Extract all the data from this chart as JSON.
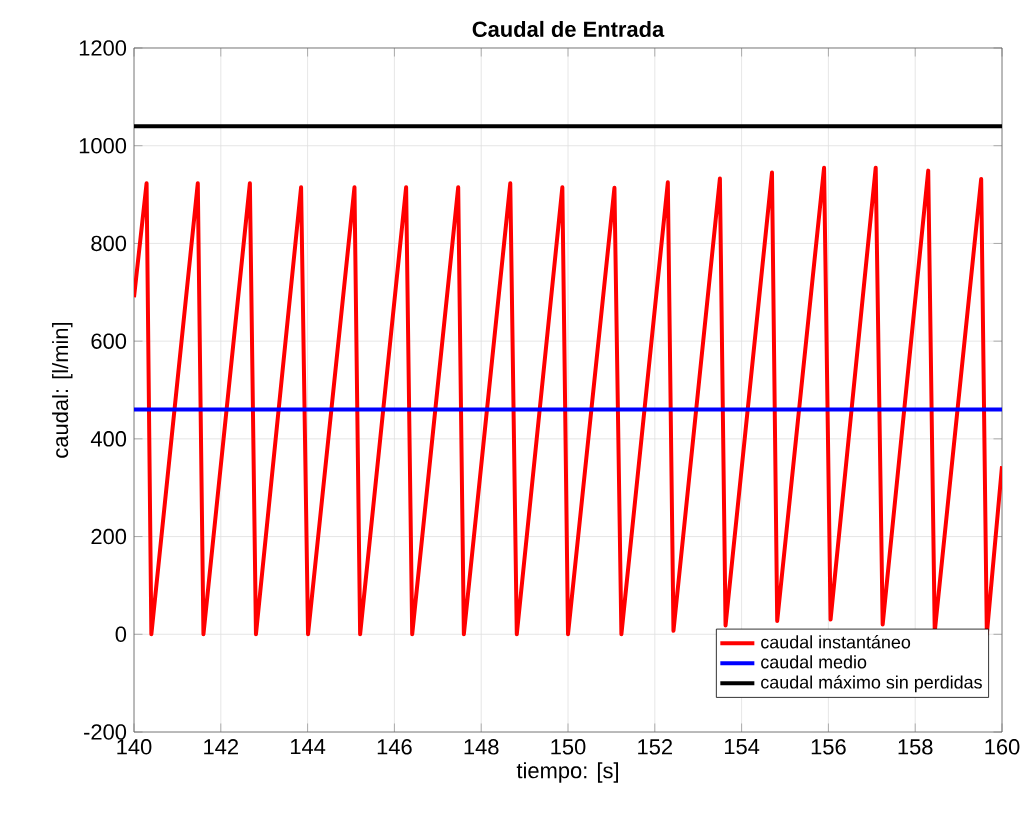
{
  "chart_data": {
    "type": "line",
    "title": "Caudal de Entrada",
    "xlabel": "tiempo: [s]",
    "ylabel": "caudal: [l/min]",
    "xlim": [
      140,
      160
    ],
    "ylim": [
      -200,
      1200
    ],
    "xticks": [
      140,
      142,
      144,
      146,
      148,
      150,
      152,
      154,
      156,
      158,
      160
    ],
    "yticks": [
      -200,
      0,
      200,
      400,
      600,
      800,
      1000,
      1200
    ],
    "grid": true,
    "legend": "bottom right",
    "line_style": "solid",
    "marker": "none",
    "series": [
      {
        "name": "caudal instantáneo",
        "color": "#ff0000",
        "x": [
          140,
          140.29,
          140.4,
          141.47,
          141.6,
          142.67,
          142.81,
          143.85,
          144.01,
          145.08,
          145.21,
          146.27,
          146.41,
          147.47,
          147.6,
          148.67,
          148.82,
          149.87,
          150.0,
          151.07,
          151.23,
          152.3,
          152.43,
          153.5,
          153.63,
          154.7,
          154.82,
          155.9,
          156.05,
          157.09,
          157.25,
          158.3,
          158.45,
          159.52,
          159.65,
          160
        ],
        "values": [
          690,
          923,
          0,
          923,
          0,
          923,
          0,
          915,
          0,
          915,
          0,
          915,
          0,
          915,
          0,
          923,
          0,
          915,
          0,
          914,
          0,
          925,
          7,
          933,
          18,
          945,
          27,
          955,
          30,
          955,
          20,
          949,
          5,
          932,
          0,
          344
        ]
      },
      {
        "name": "caudal medio",
        "color": "#0000ff",
        "x": [
          140,
          160
        ],
        "values": [
          460,
          460
        ]
      },
      {
        "name": "caudal máximo sin perdidas",
        "color": "#000000",
        "x": [
          140,
          160
        ],
        "values": [
          1040,
          1040
        ]
      }
    ]
  }
}
